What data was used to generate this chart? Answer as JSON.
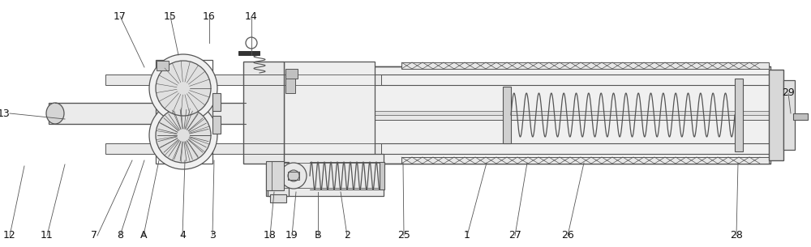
{
  "bg_color": "#ffffff",
  "lc": "#555555",
  "figsize": [
    10.0,
    3.05
  ],
  "dpi": 100,
  "leaders": [
    [
      "12",
      12,
      14,
      30,
      100
    ],
    [
      "11",
      58,
      14,
      80,
      102
    ],
    [
      "7",
      120,
      14,
      163,
      107
    ],
    [
      "8",
      148,
      14,
      178,
      107
    ],
    [
      "A",
      177,
      14,
      196,
      107
    ],
    [
      "4",
      225,
      14,
      228,
      107
    ],
    [
      "3",
      262,
      14,
      264,
      107
    ],
    [
      "18",
      333,
      14,
      338,
      68
    ],
    [
      "19",
      360,
      14,
      365,
      68
    ],
    [
      "B",
      392,
      14,
      392,
      68
    ],
    [
      "2",
      428,
      14,
      420,
      68
    ],
    [
      "25",
      498,
      14,
      497,
      104
    ],
    [
      "1",
      576,
      14,
      600,
      104
    ],
    [
      "27",
      635,
      14,
      650,
      104
    ],
    [
      "26",
      700,
      14,
      720,
      104
    ],
    [
      "28",
      908,
      14,
      910,
      104
    ],
    [
      "13",
      12,
      165,
      80,
      158
    ],
    [
      "17",
      148,
      285,
      178,
      222
    ],
    [
      "15",
      210,
      285,
      220,
      237
    ],
    [
      "16",
      258,
      285,
      258,
      252
    ],
    [
      "14",
      310,
      285,
      310,
      237
    ],
    [
      "29",
      972,
      190,
      975,
      165
    ]
  ]
}
